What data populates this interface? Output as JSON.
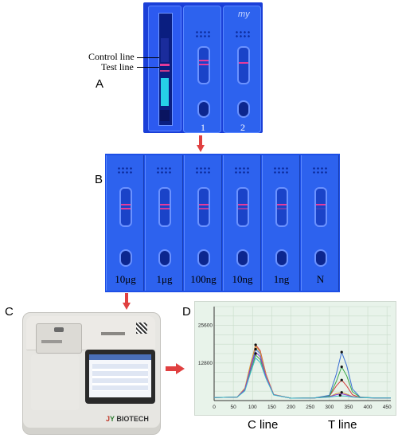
{
  "panel_a": {
    "letter": "A",
    "control_line_label": "Control line",
    "test_line_label": "Test line",
    "strip_numbers": [
      "1",
      "2"
    ],
    "handwriting": "my"
  },
  "panel_b": {
    "letter": "B",
    "strip_labels": [
      "10μg",
      "1μg",
      "100ng",
      "10ng",
      "1ng",
      "N"
    ]
  },
  "panel_c": {
    "letter": "C",
    "brand": "BIOTECH",
    "screen_columns": [
      "",
      "",
      "",
      ""
    ]
  },
  "panel_d": {
    "letter": "D",
    "c_line_label": "C line",
    "t_line_label": "T line"
  },
  "chart_data": {
    "type": "line",
    "x_ticks": [
      "0",
      "50",
      "100",
      "150",
      "200",
      "250",
      "300",
      "350",
      "400",
      "450"
    ],
    "y_ticks": [
      "12800",
      "25600"
    ],
    "xlim": [
      0,
      460
    ],
    "ylim": [
      0,
      32000
    ],
    "grid": true,
    "series": [
      {
        "color": "#d43a3a",
        "x": [
          0,
          60,
          80,
          95,
          108,
          120,
          135,
          155,
          200,
          260,
          300,
          318,
          332,
          345,
          360,
          380,
          420,
          460
        ],
        "y": [
          1000,
          1200,
          4000,
          12000,
          19000,
          17000,
          9000,
          2000,
          800,
          900,
          1500,
          5000,
          7000,
          5000,
          2000,
          1000,
          900,
          900
        ]
      },
      {
        "color": "#3a6fd4",
        "x": [
          0,
          60,
          80,
          95,
          108,
          120,
          135,
          155,
          200,
          260,
          300,
          318,
          332,
          345,
          360,
          380,
          420,
          460
        ],
        "y": [
          1000,
          1200,
          4000,
          11000,
          17500,
          16000,
          8500,
          2000,
          800,
          900,
          1800,
          9000,
          16500,
          12000,
          4000,
          1200,
          900,
          900
        ]
      },
      {
        "color": "#3aa84a",
        "x": [
          0,
          60,
          80,
          95,
          108,
          120,
          135,
          155,
          200,
          260,
          300,
          318,
          332,
          345,
          360,
          380,
          420,
          460
        ],
        "y": [
          1000,
          1200,
          3500,
          10000,
          15500,
          14000,
          8000,
          2000,
          800,
          900,
          1500,
          6500,
          11500,
          8500,
          3000,
          1100,
          900,
          900
        ]
      },
      {
        "color": "#d49a3a",
        "x": [
          0,
          60,
          80,
          95,
          108,
          120,
          135,
          155,
          200,
          260,
          300,
          318,
          332,
          345,
          360,
          380,
          420,
          460
        ],
        "y": [
          1000,
          1200,
          4200,
          12500,
          18500,
          16500,
          8800,
          2100,
          800,
          900,
          1300,
          2400,
          2800,
          2200,
          1400,
          1000,
          900,
          900
        ]
      },
      {
        "color": "#8a3ad4",
        "x": [
          0,
          60,
          80,
          95,
          108,
          120,
          135,
          155,
          200,
          260,
          300,
          318,
          332,
          345,
          360,
          380,
          420,
          460
        ],
        "y": [
          1000,
          1200,
          3800,
          11000,
          16500,
          15000,
          8200,
          2000,
          800,
          900,
          1300,
          2000,
          2300,
          1900,
          1300,
          1000,
          900,
          900
        ]
      },
      {
        "color": "#3ab8c8",
        "x": [
          0,
          60,
          80,
          95,
          108,
          120,
          135,
          155,
          200,
          260,
          300,
          318,
          332,
          345,
          360,
          380,
          420,
          460
        ],
        "y": [
          1000,
          1200,
          3300,
          9500,
          14500,
          13000,
          7500,
          1900,
          800,
          900,
          1200,
          1500,
          1600,
          1500,
          1200,
          1000,
          900,
          900
        ]
      }
    ],
    "markers": [
      {
        "x": 108,
        "y": 19000
      },
      {
        "x": 108,
        "y": 17500
      },
      {
        "x": 108,
        "y": 16000
      },
      {
        "x": 332,
        "y": 16500
      },
      {
        "x": 332,
        "y": 11500
      },
      {
        "x": 332,
        "y": 7000
      },
      {
        "x": 332,
        "y": 2800
      },
      {
        "x": 328,
        "y": 1800
      }
    ]
  }
}
